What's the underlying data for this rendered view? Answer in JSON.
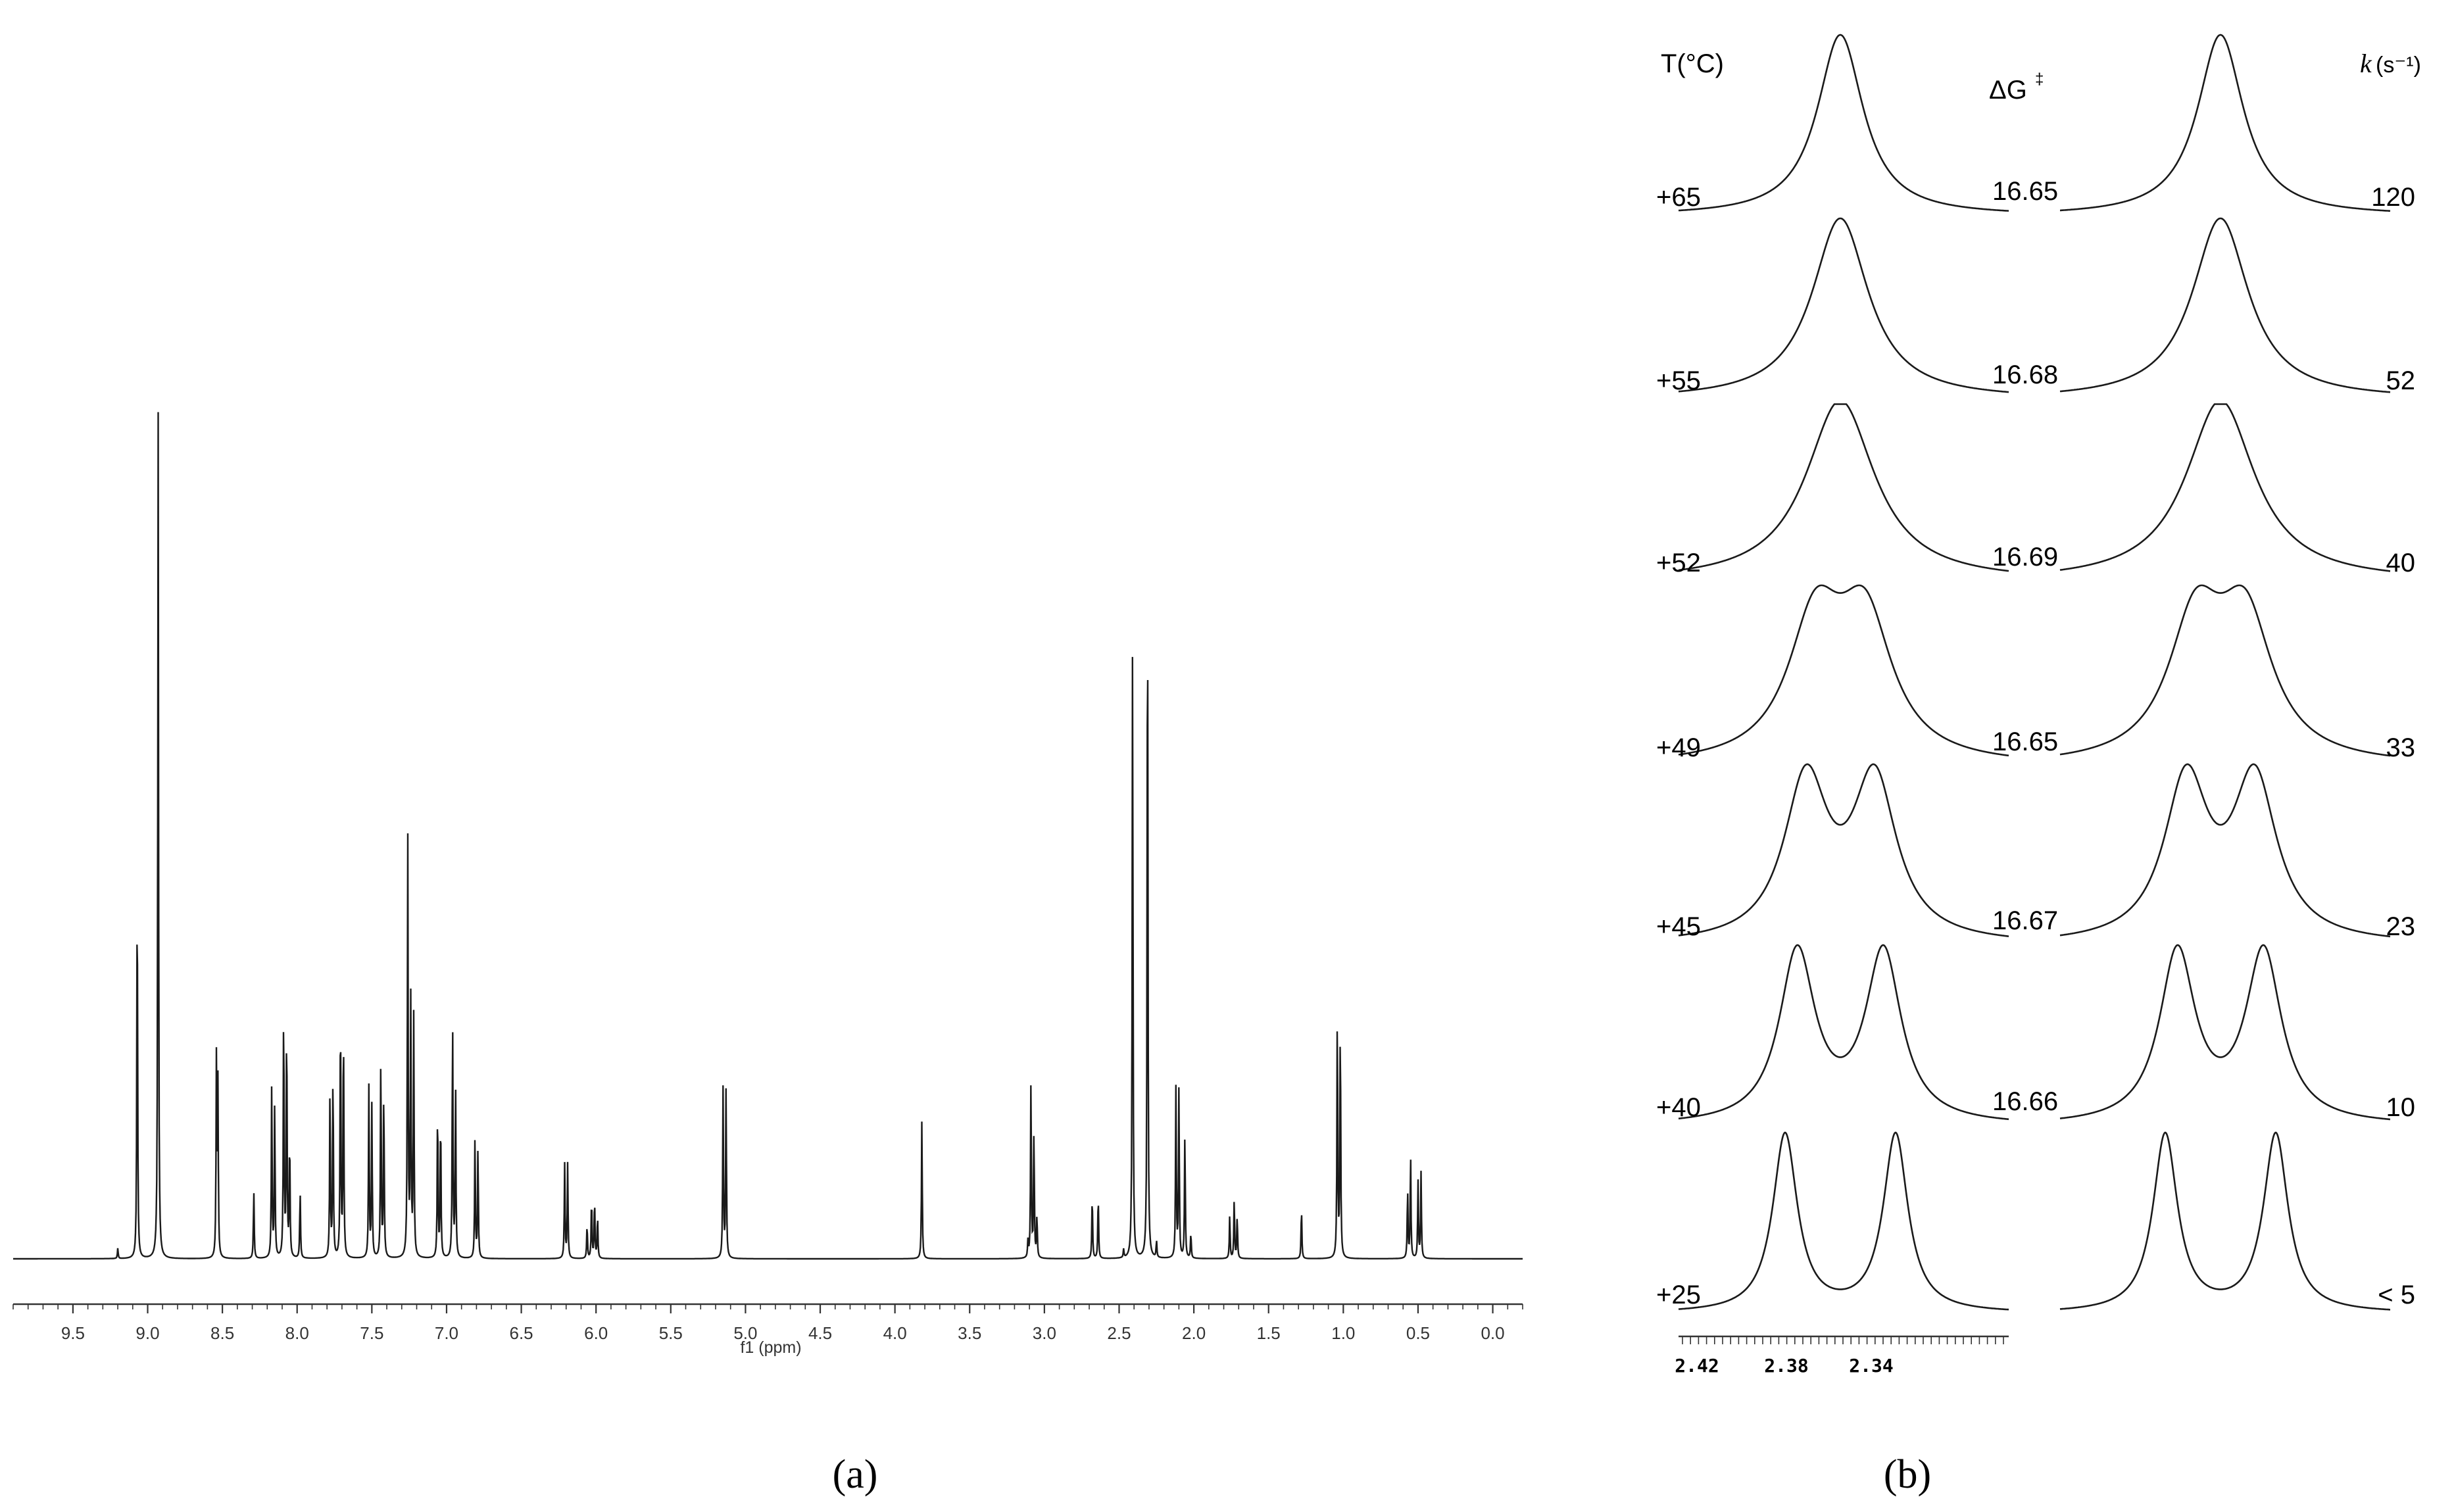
{
  "panel_labels": {
    "a": "(a)",
    "b": "(b)"
  },
  "chart_data": [
    {
      "type": "line",
      "panel": "(a)",
      "xlabel": "f1 (ppm)",
      "ylabel": "",
      "xlim": [
        9.9,
        -0.2
      ],
      "x_reversed": true,
      "x_ticks": [
        "9.5",
        "9.0",
        "8.5",
        "8.0",
        "7.5",
        "7.0",
        "6.5",
        "6.0",
        "5.5",
        "5.0",
        "4.5",
        "4.0",
        "3.5",
        "3.0",
        "2.5",
        "2.0",
        "1.5",
        "1.0",
        "0.5",
        "0.0"
      ],
      "grid": false,
      "peaks": [
        {
          "x": 9.2,
          "h": 0.012
        },
        {
          "x": 9.07,
          "h": 0.46
        },
        {
          "x": 8.93,
          "h": 1.0
        },
        {
          "x": 8.54,
          "h": 0.23
        },
        {
          "x": 8.53,
          "h": 0.2
        },
        {
          "x": 8.29,
          "h": 0.08
        },
        {
          "x": 8.17,
          "h": 0.2
        },
        {
          "x": 8.15,
          "h": 0.18
        },
        {
          "x": 8.09,
          "h": 0.3
        },
        {
          "x": 8.07,
          "h": 0.28
        },
        {
          "x": 8.05,
          "h": 0.14
        },
        {
          "x": 7.98,
          "h": 0.08
        },
        {
          "x": 7.78,
          "h": 0.2
        },
        {
          "x": 7.76,
          "h": 0.22
        },
        {
          "x": 7.71,
          "h": 0.3
        },
        {
          "x": 7.69,
          "h": 0.28
        },
        {
          "x": 7.52,
          "h": 0.2
        },
        {
          "x": 7.5,
          "h": 0.18
        },
        {
          "x": 7.44,
          "h": 0.24
        },
        {
          "x": 7.42,
          "h": 0.2
        },
        {
          "x": 7.26,
          "h": 0.5
        },
        {
          "x": 7.24,
          "h": 0.3
        },
        {
          "x": 7.22,
          "h": 0.28
        },
        {
          "x": 7.06,
          "h": 0.18
        },
        {
          "x": 7.04,
          "h": 0.17
        },
        {
          "x": 6.96,
          "h": 0.28
        },
        {
          "x": 6.94,
          "h": 0.2
        },
        {
          "x": 6.81,
          "h": 0.14
        },
        {
          "x": 6.79,
          "h": 0.13
        },
        {
          "x": 6.21,
          "h": 0.11
        },
        {
          "x": 6.19,
          "h": 0.11
        },
        {
          "x": 6.06,
          "h": 0.04
        },
        {
          "x": 6.03,
          "h": 0.07
        },
        {
          "x": 6.01,
          "h": 0.07
        },
        {
          "x": 5.99,
          "h": 0.05
        },
        {
          "x": 5.15,
          "h": 0.2
        },
        {
          "x": 5.13,
          "h": 0.2
        },
        {
          "x": 3.82,
          "h": 0.16
        },
        {
          "x": 3.11,
          "h": 0.02
        },
        {
          "x": 3.09,
          "h": 0.21
        },
        {
          "x": 3.07,
          "h": 0.15
        },
        {
          "x": 3.05,
          "h": 0.05
        },
        {
          "x": 2.68,
          "h": 0.075
        },
        {
          "x": 2.64,
          "h": 0.075
        },
        {
          "x": 2.47,
          "h": 0.01
        },
        {
          "x": 2.41,
          "h": 0.75
        },
        {
          "x": 2.31,
          "h": 0.84
        },
        {
          "x": 2.25,
          "h": 0.02
        },
        {
          "x": 2.12,
          "h": 0.2
        },
        {
          "x": 2.1,
          "h": 0.2
        },
        {
          "x": 2.06,
          "h": 0.15
        },
        {
          "x": 2.02,
          "h": 0.03
        },
        {
          "x": 1.76,
          "h": 0.05
        },
        {
          "x": 1.73,
          "h": 0.07
        },
        {
          "x": 1.71,
          "h": 0.05
        },
        {
          "x": 1.28,
          "h": 0.06
        },
        {
          "x": 1.04,
          "h": 0.29
        },
        {
          "x": 1.02,
          "h": 0.28
        },
        {
          "x": 0.57,
          "h": 0.08
        },
        {
          "x": 0.55,
          "h": 0.12
        },
        {
          "x": 0.5,
          "h": 0.09
        },
        {
          "x": 0.48,
          "h": 0.1
        }
      ]
    },
    {
      "type": "line",
      "panel": "(b)",
      "headers": {
        "temperature": "T(°C)",
        "dg": "ΔG",
        "k": "(s⁻¹)"
      },
      "x_ticks": [
        "2.42",
        "2.38",
        "2.34"
      ],
      "rows": [
        {
          "T": "+65",
          "dG": "16.65",
          "k": "120",
          "separation": 0.0,
          "width": 0.8
        },
        {
          "T": "+55",
          "dG": "16.68",
          "k": "52",
          "separation": 0.0,
          "width": 1.05
        },
        {
          "T": "+52",
          "dG": "16.69",
          "k": "40",
          "separation": 0.0,
          "width": 1.35
        },
        {
          "T": "+49",
          "dG": "16.65",
          "k": "33",
          "separation": 0.45,
          "width": 1.0
        },
        {
          "T": "+45",
          "dG": "16.67",
          "k": "23",
          "separation": 0.62,
          "width": 0.75
        },
        {
          "T": "+40",
          "dG": "16.66",
          "k": "10",
          "separation": 0.78,
          "width": 0.55
        },
        {
          "T": "+25",
          "dG": "",
          "k": "< 5",
          "separation": 1.0,
          "width": 0.28
        }
      ]
    }
  ]
}
